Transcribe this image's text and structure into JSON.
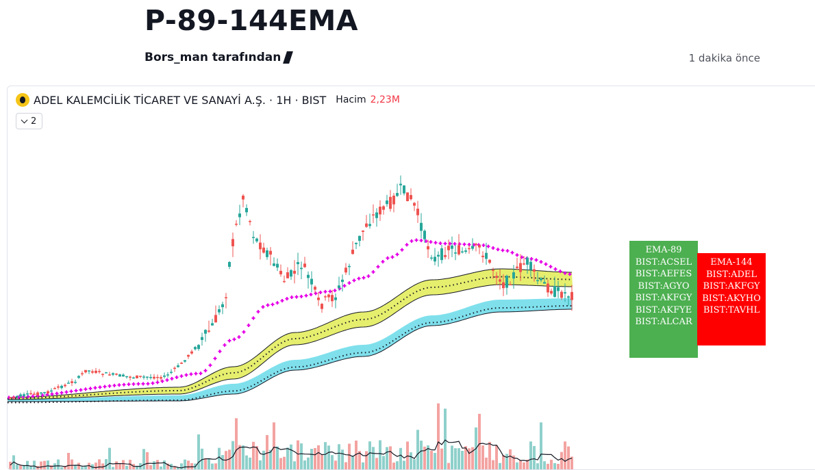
{
  "header": {
    "title": "P-89-144EMA",
    "byline": "Bors_man tarafından",
    "time_ago": "1 dakika önce"
  },
  "chart": {
    "symbol_title": "ADEL KALEMCİLİK TİCARET VE SANAYİ A.Ş. · 1H · BIST",
    "volume_label": "Hacim",
    "volume_value": "2,23M",
    "collapse_count": "2"
  },
  "ema_tables": {
    "ema89": {
      "header": "EMA-89",
      "symbols": [
        "BIST:ACSEL",
        "BIST:AEFES",
        "BIST:AGYO",
        "BIST:AKFGY",
        "BIST:AKFYE",
        "BIST:ALCAR"
      ]
    },
    "ema144": {
      "header": "EMA-144",
      "symbols": [
        "BIST:ADEL",
        "BIST:AKFGY",
        "BIST:AKYHO",
        "BIST:TAVHL"
      ]
    }
  },
  "colors": {
    "up": "#26a69a",
    "down": "#ef5350",
    "ema_short": "#e600e6",
    "ema89_fill": "#e6ee6e",
    "ema144_fill": "#7fe0ec",
    "table_green": "#4caf50",
    "table_red": "#ff0000",
    "volume_change": "#f23645"
  }
}
